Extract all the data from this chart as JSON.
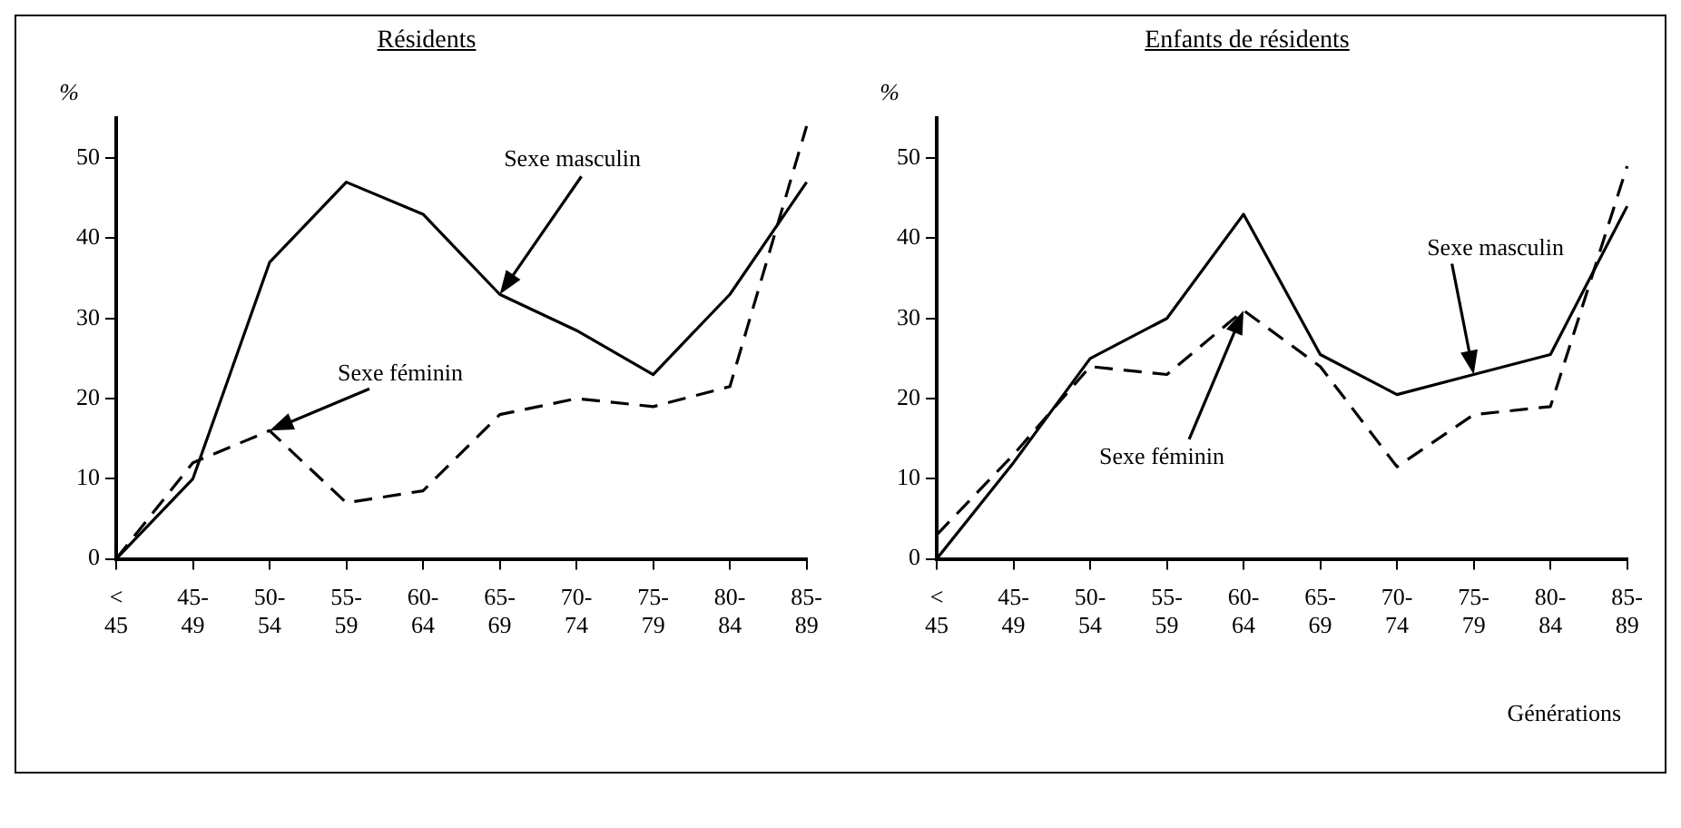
{
  "chart_data": [
    {
      "type": "line",
      "title": "Résidents",
      "ylabel": "%",
      "categories": [
        "< 45",
        "45- 49",
        "50- 54",
        "55- 59",
        "60- 64",
        "65- 69",
        "70- 74",
        "75- 79",
        "80- 84",
        "85- 89"
      ],
      "ylim": [
        0,
        55
      ],
      "yticks": [
        0,
        10,
        20,
        30,
        40,
        50
      ],
      "grid": false,
      "legend": false,
      "marker": "none",
      "series": [
        {
          "name": "Sexe masculin",
          "color": "#000000",
          "line_style": "solid",
          "values": [
            0,
            10,
            37,
            47,
            43,
            33,
            28.5,
            23,
            33,
            47
          ]
        },
        {
          "name": "Sexe féminin",
          "color": "#000000",
          "line_style": "dashed",
          "values": [
            0,
            12,
            16,
            7,
            8.5,
            18,
            20,
            19,
            21.5,
            54
          ]
        }
      ]
    },
    {
      "type": "line",
      "title": "Enfants de résidents",
      "ylabel": "%",
      "xlabel": "Générations",
      "categories": [
        "< 45",
        "45- 49",
        "50- 54",
        "55- 59",
        "60- 64",
        "65- 69",
        "70- 74",
        "75- 79",
        "80- 84",
        "85- 89"
      ],
      "ylim": [
        0,
        55
      ],
      "yticks": [
        0,
        10,
        20,
        30,
        40,
        50
      ],
      "grid": false,
      "legend": false,
      "marker": "none",
      "series": [
        {
          "name": "Sexe masculin",
          "color": "#000000",
          "line_style": "solid",
          "values": [
            0,
            12,
            25,
            30,
            43,
            25.5,
            20.5,
            23,
            25.5,
            44
          ]
        },
        {
          "name": "Sexe féminin",
          "color": "#000000",
          "line_style": "dashed",
          "values": [
            3,
            13,
            24,
            23,
            31,
            24,
            11.5,
            18,
            19,
            49
          ]
        }
      ]
    }
  ]
}
